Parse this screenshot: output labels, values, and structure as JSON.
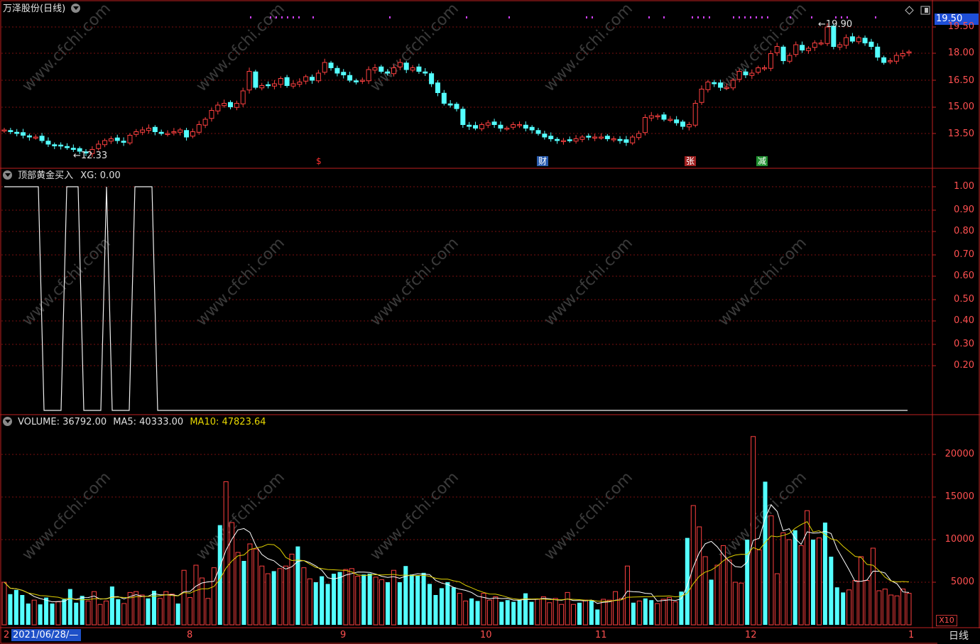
{
  "header": {
    "title": "万泽股份(日线)",
    "current_price_tag": "19.50",
    "high_label": "19.90",
    "low_label": "12.33"
  },
  "price_axis": [
    "19.50",
    "18.00",
    "16.50",
    "15.00",
    "13.50"
  ],
  "event_markers": [
    {
      "label": "$",
      "color": "#ff3030"
    },
    {
      "label": "财",
      "color": "#ffffff",
      "bg": "#2a5db0"
    },
    {
      "label": "张",
      "color": "#ffffff",
      "bg": "#a02020"
    },
    {
      "label": "减",
      "color": "#ffffff",
      "bg": "#1f8f2f"
    }
  ],
  "indicator": {
    "name": "顶部黄金买入",
    "xg_label": "XG: 0.00",
    "axis": [
      "1.00",
      "0.90",
      "0.80",
      "0.70",
      "0.60",
      "0.50",
      "0.40",
      "0.30",
      "0.20"
    ],
    "signal_values": [
      1,
      1,
      1,
      1,
      1,
      1,
      1,
      0,
      0,
      0,
      0,
      1,
      1,
      1,
      0,
      0,
      0,
      0,
      1,
      0,
      0,
      0,
      0,
      1,
      1,
      1,
      1,
      0,
      0,
      0,
      0,
      0,
      0,
      0,
      0,
      0,
      0,
      0,
      0,
      0,
      0,
      0,
      0,
      0,
      0,
      0,
      0,
      0,
      0,
      0,
      0,
      0,
      0,
      0,
      0,
      0,
      0,
      0,
      0,
      0,
      0,
      0,
      0,
      0,
      0,
      0,
      0,
      0,
      0,
      0,
      0,
      0,
      0,
      0,
      0,
      0,
      0,
      0,
      0,
      0,
      0,
      0,
      0,
      0,
      0,
      0,
      0,
      0,
      0,
      0,
      0,
      0,
      0,
      0,
      0,
      0,
      0,
      0,
      0,
      0,
      0,
      0,
      0,
      0,
      0,
      0,
      0,
      0,
      0,
      0,
      0,
      0,
      0,
      0,
      0,
      0,
      0,
      0,
      0,
      0,
      0,
      0,
      0,
      0,
      0,
      0,
      0,
      0,
      0,
      0,
      0,
      0,
      0,
      0,
      0,
      0,
      0,
      0,
      0,
      0,
      0,
      0,
      0,
      0,
      0,
      0,
      0,
      0,
      0,
      0,
      0,
      0,
      0,
      0,
      0,
      0,
      0,
      0,
      0,
      0
    ]
  },
  "volume": {
    "label_volume": "VOLUME: 36792.00",
    "label_ma5": "MA5: 40333.00",
    "label_ma10": "MA10: 47823.64",
    "axis": [
      "20000",
      "15000",
      "10000",
      "5000"
    ],
    "scale_label": "X10"
  },
  "x_axis": {
    "start_date": "2021/06/28/—",
    "first_tick": "2",
    "months": [
      "8",
      "9",
      "10",
      "11",
      "12",
      "1"
    ],
    "period": "日线"
  },
  "watermark": "www.cfchi.com",
  "colors": {
    "up": "#ff4040",
    "down": "#54ffff",
    "grid": "#7a1010",
    "frame": "#c02020",
    "ma5": "#ffffff",
    "ma10": "#e0d000"
  },
  "chart_data": {
    "type": "candlestick",
    "ylim": [
      12.0,
      20.0
    ],
    "candles_close": [
      13.7,
      13.6,
      13.5,
      13.4,
      13.3,
      13.3,
      13.1,
      12.9,
      12.8,
      12.8,
      12.7,
      12.6,
      12.5,
      12.4,
      12.6,
      12.9,
      13.1,
      13.2,
      13.1,
      13.0,
      13.4,
      13.6,
      13.7,
      13.8,
      13.6,
      13.5,
      13.5,
      13.6,
      13.7,
      13.3,
      13.6,
      14.0,
      14.3,
      14.8,
      15.1,
      15.2,
      15.0,
      15.2,
      15.9,
      17.0,
      16.1,
      16.2,
      16.2,
      16.3,
      16.6,
      16.2,
      16.3,
      16.4,
      16.7,
      16.5,
      16.9,
      17.5,
      17.2,
      16.9,
      16.8,
      16.5,
      16.4,
      16.5,
      17.1,
      17.2,
      17.0,
      16.9,
      17.2,
      17.5,
      17.1,
      17.2,
      17.0,
      16.9,
      16.3,
      15.8,
      15.2,
      15.1,
      14.9,
      14.0,
      13.9,
      13.8,
      14.0,
      14.1,
      14.0,
      13.8,
      13.8,
      14.0,
      14.0,
      13.8,
      13.7,
      13.5,
      13.3,
      13.2,
      13.1,
      13.1,
      13.1,
      13.2,
      13.3,
      13.3,
      13.3,
      13.3,
      13.2,
      13.2,
      13.1,
      13.0,
      13.3,
      13.5,
      14.4,
      14.5,
      14.5,
      14.3,
      14.3,
      14.1,
      13.9,
      14.0,
      15.2,
      16.0,
      16.4,
      16.3,
      16.1,
      16.1,
      16.5,
      17.0,
      16.8,
      16.9,
      17.2,
      17.2,
      18.0,
      18.4,
      17.6,
      17.9,
      18.5,
      18.2,
      18.3,
      18.6,
      18.6,
      19.5,
      18.4,
      18.5,
      18.9,
      18.7,
      18.9,
      18.6,
      18.4,
      17.8,
      17.5,
      17.6,
      17.9,
      18.0,
      18.1
    ],
    "volume_values": [
      5000,
      3600,
      4100,
      3500,
      2500,
      2900,
      2400,
      3200,
      2500,
      2700,
      3000,
      4200,
      2600,
      3400,
      2800,
      3900,
      2400,
      2800,
      4500,
      3000,
      2500,
      3800,
      3900,
      3500,
      3100,
      4000,
      3100,
      3900,
      3600,
      2500,
      6400,
      3200,
      7000,
      5500,
      3100,
      6700,
      11700,
      16800,
      12000,
      8500,
      7500,
      9500,
      8900,
      6900,
      6000,
      6300,
      6600,
      6900,
      8300,
      9200,
      6700,
      5400,
      5000,
      5700,
      4800,
      6000,
      6200,
      6500,
      6600,
      5700,
      5900,
      6000,
      5600,
      5300,
      5000,
      6400,
      5000,
      6900,
      5900,
      5800,
      6100,
      4800,
      3500,
      4300,
      5000,
      4400,
      3700,
      2800,
      3100,
      2800,
      3700,
      2900,
      3300,
      2700,
      2900,
      2700,
      2900,
      3700,
      2700,
      3000,
      3300,
      2600,
      3100,
      2400,
      3800,
      2400,
      2600,
      2900,
      2900,
      1800,
      3000,
      2900,
      3900,
      3100,
      6900,
      2600,
      2800,
      3100,
      2900,
      2500,
      3000,
      3200,
      2700,
      3900,
      10200,
      14000,
      11500,
      8000,
      5300,
      7000,
      9300,
      7600,
      5000,
      4900,
      10000,
      22100,
      8800,
      16800,
      12800,
      6000,
      10800,
      10000,
      11100,
      9300,
      13400,
      10000,
      10200,
      12000,
      8000,
      4400,
      3800,
      4100,
      5200,
      8000,
      5200,
      9000,
      4000,
      4200,
      3500,
      3400,
      4200,
      3700
    ],
    "ma5": [],
    "ma10": []
  }
}
